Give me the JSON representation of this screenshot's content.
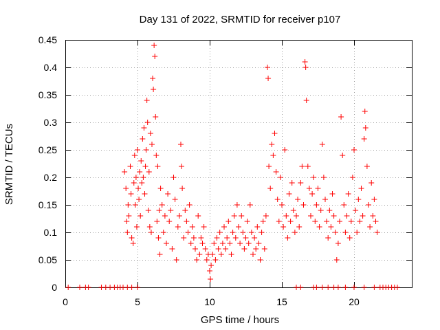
{
  "chart_data": {
    "type": "scatter",
    "title": "Day 131 of 2022, SRMTID for receiver p107",
    "xlabel": "GPS time / hours",
    "ylabel": "SRMTID / TECUs",
    "xlim": [
      0,
      24
    ],
    "ylim": [
      0,
      0.45
    ],
    "grid": true,
    "x_ticks": [
      0,
      5,
      10,
      15,
      20
    ],
    "x_tick_labels": [
      "0",
      "5",
      "10",
      "15",
      "20"
    ],
    "y_ticks": [
      0,
      0.05,
      0.1,
      0.15,
      0.2,
      0.25,
      0.3,
      0.35,
      0.4,
      0.45
    ],
    "y_tick_labels": [
      "0",
      "0.05",
      "0.1",
      "0.15",
      "0.2",
      "0.25",
      "0.3",
      "0.35",
      "0.4",
      "0.45"
    ],
    "marker": "plus",
    "series": [
      {
        "name": "SRMTID",
        "color": "#ff0000",
        "points": [
          [
            0.2,
            0
          ],
          [
            1.0,
            0
          ],
          [
            1.4,
            0
          ],
          [
            1.6,
            0
          ],
          [
            2.5,
            0
          ],
          [
            2.8,
            0
          ],
          [
            3.1,
            0
          ],
          [
            3.4,
            0
          ],
          [
            3.6,
            0
          ],
          [
            3.8,
            0
          ],
          [
            4.0,
            0
          ],
          [
            4.3,
            0
          ],
          [
            4.6,
            0
          ],
          [
            5.0,
            0
          ],
          [
            4.1,
            0.21
          ],
          [
            4.2,
            0.18
          ],
          [
            4.25,
            0.12
          ],
          [
            4.3,
            0.1
          ],
          [
            4.35,
            0.15
          ],
          [
            4.4,
            0.13
          ],
          [
            4.5,
            0.22
          ],
          [
            4.55,
            0.17
          ],
          [
            4.6,
            0.09
          ],
          [
            4.7,
            0.08
          ],
          [
            4.75,
            0.19
          ],
          [
            4.8,
            0.24
          ],
          [
            4.85,
            0.15
          ],
          [
            4.9,
            0.2
          ],
          [
            4.95,
            0.11
          ],
          [
            5.0,
            0.25
          ],
          [
            5.05,
            0.18
          ],
          [
            5.1,
            0.16
          ],
          [
            5.15,
            0.21
          ],
          [
            5.2,
            0.13
          ],
          [
            5.25,
            0.23
          ],
          [
            5.3,
            0.19
          ],
          [
            5.35,
            0.27
          ],
          [
            5.4,
            0.2
          ],
          [
            5.45,
            0.29
          ],
          [
            5.5,
            0.17
          ],
          [
            5.55,
            0.22
          ],
          [
            5.6,
            0.25
          ],
          [
            5.65,
            0.34
          ],
          [
            5.7,
            0.3
          ],
          [
            5.75,
            0.14
          ],
          [
            5.8,
            0.21
          ],
          [
            5.85,
            0.11
          ],
          [
            5.9,
            0.28
          ],
          [
            5.95,
            0.1
          ],
          [
            6.0,
            0.26
          ],
          [
            6.05,
            0.38
          ],
          [
            6.1,
            0.36
          ],
          [
            6.15,
            0.44
          ],
          [
            6.2,
            0.42
          ],
          [
            6.25,
            0.31
          ],
          [
            6.3,
            0.24
          ],
          [
            6.35,
            0.12
          ],
          [
            6.4,
            0.22
          ],
          [
            6.45,
            0.09
          ],
          [
            6.5,
            0.14
          ],
          [
            6.55,
            0.06
          ],
          [
            6.6,
            0.18
          ],
          [
            6.7,
            0.15
          ],
          [
            6.8,
            0.1
          ],
          [
            6.9,
            0.13
          ],
          [
            7.0,
            0.08
          ],
          [
            7.1,
            0.17
          ],
          [
            7.2,
            0.12
          ],
          [
            7.3,
            0.14
          ],
          [
            7.4,
            0.07
          ],
          [
            7.5,
            0.2
          ],
          [
            7.6,
            0.16
          ],
          [
            7.7,
            0.05
          ],
          [
            7.8,
            0.11
          ],
          [
            7.9,
            0.13
          ],
          [
            8.0,
            0.26
          ],
          [
            8.05,
            0.22
          ],
          [
            8.1,
            0.18
          ],
          [
            8.2,
            0.09
          ],
          [
            8.3,
            0.14
          ],
          [
            8.4,
            0.12
          ],
          [
            8.5,
            0.1
          ],
          [
            8.6,
            0.15
          ],
          [
            8.7,
            0.08
          ],
          [
            8.8,
            0.11
          ],
          [
            8.9,
            0.09
          ],
          [
            9.0,
            0.07
          ],
          [
            9.1,
            0.05
          ],
          [
            9.2,
            0.13
          ],
          [
            9.3,
            0.06
          ],
          [
            9.4,
            0.09
          ],
          [
            9.5,
            0.08
          ],
          [
            9.6,
            0.11
          ],
          [
            9.7,
            0.07
          ],
          [
            9.8,
            0.05
          ],
          [
            9.9,
            0.06
          ],
          [
            10.0,
            0.03
          ],
          [
            10.05,
            0.015
          ],
          [
            10.1,
            0.04
          ],
          [
            10.2,
            0.06
          ],
          [
            10.3,
            0.08
          ],
          [
            10.4,
            0.05
          ],
          [
            10.5,
            0.09
          ],
          [
            10.6,
            0.07
          ],
          [
            10.7,
            0.1
          ],
          [
            10.8,
            0.06
          ],
          [
            10.9,
            0.08
          ],
          [
            11.0,
            0.11
          ],
          [
            11.1,
            0.07
          ],
          [
            11.2,
            0.09
          ],
          [
            11.3,
            0.12
          ],
          [
            11.4,
            0.08
          ],
          [
            11.5,
            0.06
          ],
          [
            11.6,
            0.1
          ],
          [
            11.7,
            0.13
          ],
          [
            11.8,
            0.09
          ],
          [
            11.9,
            0.15
          ],
          [
            12.0,
            0.11
          ],
          [
            12.1,
            0.08
          ],
          [
            12.2,
            0.13
          ],
          [
            12.3,
            0.1
          ],
          [
            12.4,
            0.07
          ],
          [
            12.5,
            0.09
          ],
          [
            12.6,
            0.12
          ],
          [
            12.7,
            0.08
          ],
          [
            12.8,
            0.15
          ],
          [
            12.9,
            0.1
          ],
          [
            13.0,
            0.06
          ],
          [
            13.1,
            0.09
          ],
          [
            13.2,
            0.07
          ],
          [
            13.3,
            0.11
          ],
          [
            13.4,
            0.08
          ],
          [
            13.5,
            0.05
          ],
          [
            13.6,
            0.1
          ],
          [
            13.7,
            0.12
          ],
          [
            13.8,
            0.07
          ],
          [
            13.9,
            0.13
          ],
          [
            14.0,
            0.4
          ],
          [
            14.05,
            0.38
          ],
          [
            14.1,
            0.22
          ],
          [
            14.2,
            0.18
          ],
          [
            14.3,
            0.26
          ],
          [
            14.4,
            0.24
          ],
          [
            14.5,
            0.28
          ],
          [
            14.6,
            0.21
          ],
          [
            14.7,
            0.16
          ],
          [
            14.8,
            0.12
          ],
          [
            14.9,
            0.2
          ],
          [
            15.0,
            0.15
          ],
          [
            15.1,
            0.11
          ],
          [
            15.2,
            0.25
          ],
          [
            15.3,
            0.13
          ],
          [
            15.4,
            0.09
          ],
          [
            15.5,
            0.17
          ],
          [
            15.6,
            0.12
          ],
          [
            15.7,
            0.19
          ],
          [
            15.8,
            0.14
          ],
          [
            15.9,
            0.1
          ],
          [
            16.0,
            0.13
          ],
          [
            16.1,
            0.16
          ],
          [
            16.2,
            0.11
          ],
          [
            16.3,
            0.19
          ],
          [
            16.4,
            0.22
          ],
          [
            16.5,
            0.15
          ],
          [
            16.6,
            0.41
          ],
          [
            16.65,
            0.4
          ],
          [
            16.7,
            0.34
          ],
          [
            16.8,
            0.22
          ],
          [
            16.9,
            0.18
          ],
          [
            17.0,
            0.13
          ],
          [
            17.1,
            0.17
          ],
          [
            17.2,
            0.2
          ],
          [
            17.3,
            0.12
          ],
          [
            17.4,
            0.15
          ],
          [
            17.5,
            0.18
          ],
          [
            17.6,
            0.11
          ],
          [
            17.7,
            0.14
          ],
          [
            17.8,
            0.26
          ],
          [
            17.9,
            0.2
          ],
          [
            18.0,
            0.16
          ],
          [
            18.1,
            0.12
          ],
          [
            18.2,
            0.09
          ],
          [
            18.3,
            0.14
          ],
          [
            18.4,
            0.11
          ],
          [
            18.5,
            0.17
          ],
          [
            18.6,
            0.13
          ],
          [
            18.7,
            0.1
          ],
          [
            18.8,
            0.05
          ],
          [
            18.9,
            0.08
          ],
          [
            19.0,
            0.12
          ],
          [
            19.1,
            0.31
          ],
          [
            19.2,
            0.24
          ],
          [
            19.3,
            0.15
          ],
          [
            19.4,
            0.1
          ],
          [
            19.5,
            0.13
          ],
          [
            19.6,
            0.17
          ],
          [
            19.7,
            0.09
          ],
          [
            19.8,
            0.12
          ],
          [
            19.9,
            0.2
          ],
          [
            20.0,
            0.25
          ],
          [
            20.1,
            0.14
          ],
          [
            20.2,
            0.1
          ],
          [
            20.3,
            0.16
          ],
          [
            20.4,
            0.12
          ],
          [
            20.5,
            0.18
          ],
          [
            20.6,
            0.13
          ],
          [
            20.7,
            0.27
          ],
          [
            20.75,
            0.32
          ],
          [
            20.8,
            0.29
          ],
          [
            20.9,
            0.22
          ],
          [
            21.0,
            0.15
          ],
          [
            21.1,
            0.11
          ],
          [
            21.2,
            0.19
          ],
          [
            21.3,
            0.13
          ],
          [
            21.4,
            0.16
          ],
          [
            21.5,
            0.12
          ],
          [
            21.6,
            0.1
          ],
          [
            16.0,
            0
          ],
          [
            16.3,
            0
          ],
          [
            17.2,
            0
          ],
          [
            17.4,
            0
          ],
          [
            17.8,
            0
          ],
          [
            18.2,
            0
          ],
          [
            18.6,
            0
          ],
          [
            18.9,
            0
          ],
          [
            19.4,
            0
          ],
          [
            20.0,
            0
          ],
          [
            20.7,
            0
          ],
          [
            21.4,
            0
          ],
          [
            21.8,
            0
          ],
          [
            22.0,
            0
          ],
          [
            22.2,
            0
          ],
          [
            22.4,
            0
          ],
          [
            22.6,
            0
          ],
          [
            22.8,
            0
          ],
          [
            23.0,
            0
          ]
        ]
      }
    ]
  }
}
